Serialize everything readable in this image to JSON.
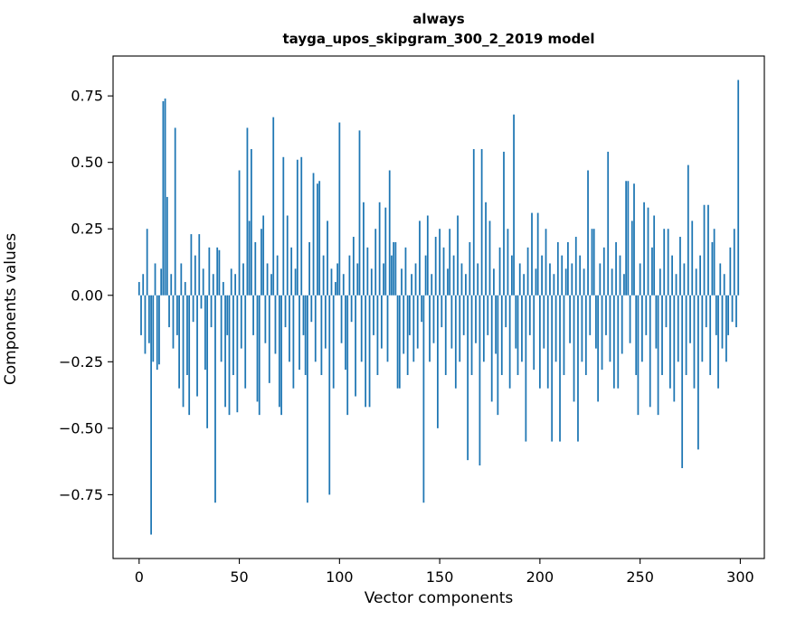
{
  "figure": {
    "title_line1": "always",
    "title_line2": "tayga_upos_skipgram_300_2_2019 model",
    "xlabel": "Vector components",
    "ylabel": "Components values"
  },
  "chart_data": {
    "type": "bar",
    "title": "always",
    "subtitle": "tayga_upos_skipgram_300_2_2019 model",
    "xlabel": "Vector components",
    "ylabel": "Components values",
    "bar_color": "#1f77b4",
    "grid": false,
    "legend": "none",
    "x_start": 0,
    "xlim": [
      -13,
      312
    ],
    "ylim": [
      -0.99,
      0.9
    ],
    "xticks": [
      0,
      50,
      100,
      150,
      200,
      250,
      300
    ],
    "yticks": [
      -0.75,
      -0.5,
      -0.25,
      0.0,
      0.25,
      0.5,
      0.75
    ],
    "values": [
      0.05,
      -0.15,
      0.08,
      -0.22,
      0.25,
      -0.18,
      -0.9,
      -0.25,
      0.12,
      -0.28,
      -0.26,
      0.1,
      0.73,
      0.74,
      0.37,
      -0.12,
      0.08,
      -0.2,
      0.63,
      -0.15,
      -0.35,
      0.12,
      -0.42,
      0.05,
      -0.3,
      -0.45,
      0.23,
      -0.1,
      0.15,
      -0.38,
      0.23,
      -0.05,
      0.1,
      -0.28,
      -0.5,
      0.18,
      -0.12,
      0.08,
      -0.78,
      0.18,
      0.17,
      -0.25,
      0.05,
      -0.42,
      -0.15,
      -0.45,
      0.1,
      -0.3,
      0.08,
      -0.44,
      0.47,
      -0.2,
      0.12,
      -0.35,
      0.63,
      0.28,
      0.55,
      -0.15,
      0.2,
      -0.4,
      -0.45,
      0.25,
      0.3,
      -0.18,
      0.12,
      -0.33,
      0.08,
      0.67,
      -0.22,
      0.15,
      -0.42,
      -0.45,
      0.52,
      -0.12,
      0.3,
      -0.25,
      0.18,
      -0.35,
      0.1,
      0.51,
      -0.28,
      0.52,
      -0.15,
      -0.3,
      -0.78,
      0.2,
      -0.1,
      0.46,
      -0.25,
      0.42,
      0.43,
      -0.3,
      0.15,
      -0.2,
      0.28,
      -0.75,
      0.1,
      -0.35,
      0.05,
      0.12,
      0.65,
      -0.18,
      0.08,
      -0.28,
      -0.45,
      0.15,
      -0.1,
      0.22,
      -0.38,
      0.12,
      0.62,
      -0.25,
      0.35,
      -0.42,
      0.18,
      -0.42,
      0.1,
      -0.15,
      0.25,
      -0.3,
      0.35,
      -0.2,
      0.12,
      0.33,
      -0.25,
      0.47,
      0.15,
      0.2,
      0.2,
      -0.35,
      -0.35,
      0.1,
      -0.22,
      0.18,
      -0.3,
      -0.15,
      0.08,
      -0.25,
      0.12,
      -0.2,
      0.28,
      -0.1,
      -0.78,
      0.15,
      0.3,
      -0.25,
      0.08,
      -0.18,
      0.22,
      -0.5,
      0.25,
      -0.12,
      0.18,
      -0.3,
      0.1,
      0.25,
      -0.2,
      0.15,
      -0.35,
      0.3,
      -0.25,
      0.12,
      -0.15,
      0.08,
      -0.62,
      0.2,
      -0.3,
      0.55,
      -0.18,
      0.12,
      -0.64,
      0.55,
      -0.25,
      0.35,
      -0.15,
      0.28,
      -0.4,
      0.1,
      -0.22,
      -0.45,
      0.18,
      -0.3,
      0.54,
      -0.12,
      0.25,
      -0.35,
      0.15,
      0.68,
      -0.2,
      -0.3,
      0.12,
      -0.25,
      0.08,
      -0.55,
      0.18,
      -0.15,
      0.31,
      -0.28,
      0.1,
      0.31,
      -0.35,
      0.15,
      -0.2,
      0.25,
      -0.35,
      0.12,
      -0.55,
      0.08,
      -0.25,
      0.2,
      -0.55,
      0.15,
      -0.3,
      0.1,
      0.2,
      -0.18,
      0.12,
      -0.4,
      0.22,
      -0.55,
      0.15,
      -0.25,
      0.1,
      -0.3,
      0.47,
      -0.15,
      0.25,
      0.25,
      -0.2,
      -0.4,
      0.12,
      -0.28,
      0.18,
      -0.15,
      0.54,
      -0.25,
      0.1,
      -0.35,
      0.2,
      -0.35,
      0.15,
      -0.22,
      0.08,
      0.43,
      0.43,
      -0.18,
      0.28,
      0.42,
      -0.3,
      -0.45,
      0.12,
      -0.25,
      0.35,
      -0.15,
      0.33,
      -0.42,
      0.18,
      0.3,
      -0.2,
      -0.45,
      0.1,
      -0.3,
      0.25,
      -0.12,
      0.25,
      -0.35,
      0.15,
      -0.4,
      0.08,
      -0.25,
      0.22,
      -0.65,
      0.12,
      -0.3,
      0.49,
      -0.18,
      0.28,
      -0.35,
      0.1,
      -0.58,
      0.15,
      -0.25,
      0.34,
      -0.12,
      0.34,
      -0.3,
      0.2,
      0.25,
      -0.15,
      -0.35,
      0.12,
      -0.2,
      0.08,
      -0.25,
      -0.15,
      0.18,
      -0.1,
      0.25,
      -0.12,
      0.81
    ]
  }
}
